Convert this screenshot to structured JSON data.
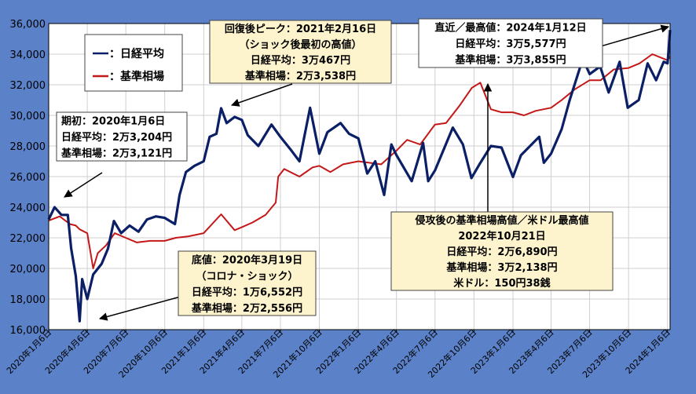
{
  "chart_data": {
    "type": "line",
    "ylim": [
      16000,
      36000
    ],
    "yticks": [
      16000,
      18000,
      20000,
      22000,
      24000,
      26000,
      28000,
      30000,
      32000,
      34000,
      36000
    ],
    "ytick_labels": [
      "16,000",
      "18,000",
      "20,000",
      "22,000",
      "24,000",
      "26,000",
      "28,000",
      "30,000",
      "32,000",
      "34,000",
      "36,000"
    ],
    "xlim": [
      "2020-01-06",
      "2024-01-12"
    ],
    "xticks": [
      "2020-01-06",
      "2020-04-06",
      "2020-07-06",
      "2020-10-06",
      "2021-01-06",
      "2021-04-06",
      "2021-07-06",
      "2021-10-06",
      "2022-01-06",
      "2022-04-06",
      "2022-07-06",
      "2022-10-06",
      "2023-01-06",
      "2023-04-06",
      "2023-07-06",
      "2023-10-06",
      "2024-01-06"
    ],
    "xtick_labels": [
      "2020年1月6日",
      "2020年4月6日",
      "2020年7月6日",
      "2020年10月6日",
      "2021年1月6日",
      "2021年4月6日",
      "2021年7月6日",
      "2021年10月6日",
      "2022年1月6日",
      "2022年4月6日",
      "2022年7月6日",
      "2022年10月6日",
      "2023年1月6日",
      "2023年4月6日",
      "2023年7月6日",
      "2023年10月6日",
      "2024年1月6日"
    ],
    "grid": true,
    "legend": {
      "position": "top-left"
    },
    "series": [
      {
        "name": "日経平均",
        "color": "#0b1f66",
        "points": [
          [
            "2020-01-06",
            23204
          ],
          [
            "2020-01-20",
            24000
          ],
          [
            "2020-02-05",
            23500
          ],
          [
            "2020-02-20",
            23500
          ],
          [
            "2020-02-28",
            21300
          ],
          [
            "2020-03-10",
            19500
          ],
          [
            "2020-03-19",
            16552
          ],
          [
            "2020-03-25",
            19300
          ],
          [
            "2020-04-06",
            18000
          ],
          [
            "2020-04-20",
            19600
          ],
          [
            "2020-05-10",
            20300
          ],
          [
            "2020-05-25",
            21300
          ],
          [
            "2020-06-08",
            23100
          ],
          [
            "2020-06-25",
            22300
          ],
          [
            "2020-07-15",
            22800
          ],
          [
            "2020-08-05",
            22400
          ],
          [
            "2020-08-25",
            23200
          ],
          [
            "2020-09-15",
            23400
          ],
          [
            "2020-10-06",
            23300
          ],
          [
            "2020-10-30",
            22900
          ],
          [
            "2020-11-10",
            24800
          ],
          [
            "2020-11-25",
            26300
          ],
          [
            "2020-12-15",
            26700
          ],
          [
            "2021-01-06",
            27000
          ],
          [
            "2021-01-20",
            28600
          ],
          [
            "2021-02-05",
            28800
          ],
          [
            "2021-02-16",
            30467
          ],
          [
            "2021-03-01",
            29500
          ],
          [
            "2021-03-20",
            29900
          ],
          [
            "2021-04-06",
            29700
          ],
          [
            "2021-04-20",
            28700
          ],
          [
            "2021-05-15",
            28000
          ],
          [
            "2021-06-15",
            29400
          ],
          [
            "2021-07-06",
            28600
          ],
          [
            "2021-08-01",
            27700
          ],
          [
            "2021-08-20",
            27000
          ],
          [
            "2021-09-14",
            30500
          ],
          [
            "2021-10-06",
            27500
          ],
          [
            "2021-10-25",
            28900
          ],
          [
            "2021-11-25",
            29500
          ],
          [
            "2021-12-15",
            28800
          ],
          [
            "2022-01-06",
            28500
          ],
          [
            "2022-01-27",
            26200
          ],
          [
            "2022-02-15",
            27000
          ],
          [
            "2022-03-08",
            24800
          ],
          [
            "2022-03-25",
            28100
          ],
          [
            "2022-04-06",
            27400
          ],
          [
            "2022-05-12",
            25700
          ],
          [
            "2022-06-08",
            28200
          ],
          [
            "2022-06-20",
            25700
          ],
          [
            "2022-07-06",
            26400
          ],
          [
            "2022-08-17",
            29200
          ],
          [
            "2022-09-10",
            28100
          ],
          [
            "2022-09-30",
            25900
          ],
          [
            "2022-10-21",
            26890
          ],
          [
            "2022-11-15",
            28000
          ],
          [
            "2022-12-10",
            27900
          ],
          [
            "2023-01-06",
            25973
          ],
          [
            "2023-01-25",
            27400
          ],
          [
            "2023-03-09",
            28600
          ],
          [
            "2023-03-20",
            26900
          ],
          [
            "2023-04-06",
            27500
          ],
          [
            "2023-05-01",
            29100
          ],
          [
            "2023-05-20",
            31000
          ],
          [
            "2023-06-20",
            33700
          ],
          [
            "2023-07-06",
            32700
          ],
          [
            "2023-07-31",
            33200
          ],
          [
            "2023-08-20",
            31500
          ],
          [
            "2023-09-15",
            33500
          ],
          [
            "2023-10-04",
            30500
          ],
          [
            "2023-10-30",
            31000
          ],
          [
            "2023-11-20",
            33400
          ],
          [
            "2023-12-10",
            32300
          ],
          [
            "2023-12-28",
            33500
          ],
          [
            "2024-01-06",
            33400
          ],
          [
            "2024-01-12",
            35577
          ]
        ]
      },
      {
        "name": "基準相場",
        "color": "#c41818",
        "points": [
          [
            "2020-01-06",
            23121
          ],
          [
            "2020-02-01",
            23400
          ],
          [
            "2020-02-25",
            22900
          ],
          [
            "2020-03-10",
            22800
          ],
          [
            "2020-03-19",
            22556
          ],
          [
            "2020-04-06",
            22300
          ],
          [
            "2020-04-20",
            20000
          ],
          [
            "2020-05-01",
            21000
          ],
          [
            "2020-05-20",
            21500
          ],
          [
            "2020-06-10",
            22300
          ],
          [
            "2020-07-06",
            22000
          ],
          [
            "2020-08-01",
            21700
          ],
          [
            "2020-09-01",
            21800
          ],
          [
            "2020-10-06",
            21800
          ],
          [
            "2020-11-01",
            22000
          ],
          [
            "2020-12-01",
            22100
          ],
          [
            "2021-01-06",
            22300
          ],
          [
            "2021-02-16",
            23538
          ],
          [
            "2021-03-20",
            22500
          ],
          [
            "2021-04-06",
            22700
          ],
          [
            "2021-05-01",
            23000
          ],
          [
            "2021-06-01",
            23500
          ],
          [
            "2021-06-25",
            24300
          ],
          [
            "2021-07-01",
            26000
          ],
          [
            "2021-07-15",
            26500
          ],
          [
            "2021-08-20",
            26000
          ],
          [
            "2021-09-20",
            26600
          ],
          [
            "2021-10-06",
            26700
          ],
          [
            "2021-11-01",
            26300
          ],
          [
            "2021-12-01",
            26800
          ],
          [
            "2022-01-06",
            27000
          ],
          [
            "2022-02-01",
            26900
          ],
          [
            "2022-03-01",
            26800
          ],
          [
            "2022-04-06",
            27700
          ],
          [
            "2022-05-01",
            28400
          ],
          [
            "2022-06-01",
            28100
          ],
          [
            "2022-07-06",
            29400
          ],
          [
            "2022-08-01",
            29500
          ],
          [
            "2022-09-01",
            30600
          ],
          [
            "2022-10-01",
            31800
          ],
          [
            "2022-10-21",
            32138
          ],
          [
            "2022-11-15",
            30400
          ],
          [
            "2022-12-10",
            30200
          ],
          [
            "2023-01-06",
            30200
          ],
          [
            "2023-02-01",
            30000
          ],
          [
            "2023-03-01",
            30300
          ],
          [
            "2023-04-06",
            30500
          ],
          [
            "2023-05-01",
            31000
          ],
          [
            "2023-06-01",
            31700
          ],
          [
            "2023-07-06",
            32300
          ],
          [
            "2023-08-01",
            32300
          ],
          [
            "2023-09-01",
            33000
          ],
          [
            "2023-10-06",
            33100
          ],
          [
            "2023-11-01",
            33400
          ],
          [
            "2023-12-01",
            34000
          ],
          [
            "2024-01-06",
            33600
          ],
          [
            "2024-01-12",
            33855
          ]
        ]
      }
    ],
    "annotations": [
      {
        "lines": [
          "期初：2020年1月6日",
          "日経平均：2万3,204円",
          "基準相場：2万3,121円"
        ],
        "bg": "#ffffff"
      },
      {
        "lines": [
          "回復後ピーク：2021年2月16日",
          "（ショック後最初の高値）",
          "日経平均：3万467円",
          "基準相場：2万3,538円"
        ],
        "bg": "#fdf3cc"
      },
      {
        "lines": [
          "直近／最高値：2024年1月12日",
          "日経平均：3万5,577円",
          "基準相場：3万3,855円"
        ],
        "bg": "#ffffff"
      },
      {
        "lines": [
          "底値：2020年3月19日",
          "（コロナ・ショック）",
          "日経平均：1万6,552円",
          "基準相場：2万2,556円"
        ],
        "bg": "#fdf3cc"
      },
      {
        "lines": [
          "侵攻後の基準相場高値／米ドル最高値",
          "2022年10月21日",
          "日経平均：2万6,890円",
          "基準相場：3万2,138円",
          "米ドル：150円38銭"
        ],
        "bg": "#fdf3cc"
      }
    ]
  }
}
